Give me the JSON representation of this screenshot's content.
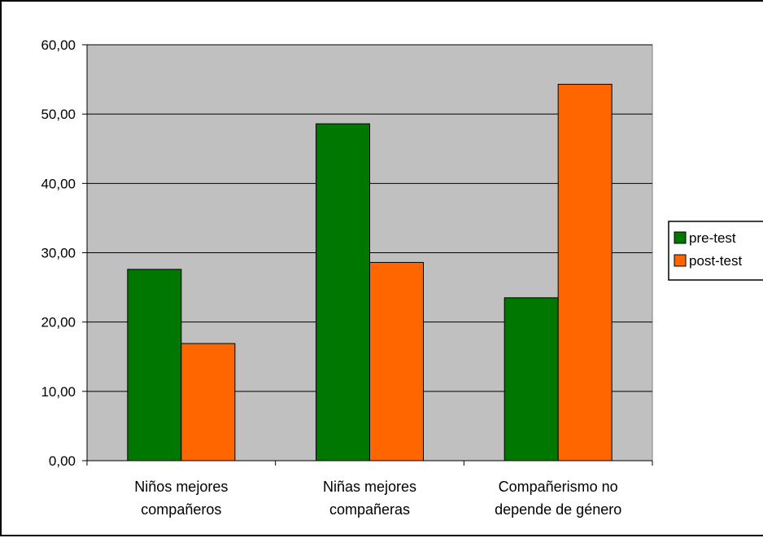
{
  "chart_data": {
    "type": "bar",
    "title": "",
    "xlabel": "",
    "ylabel": "",
    "categories": [
      [
        "Niños mejores",
        "compañeros"
      ],
      [
        "Niñas mejores",
        "compañeras"
      ],
      [
        "Compañerismo no",
        "depende de género"
      ]
    ],
    "series": [
      {
        "name": "pre-test",
        "color": "#007800",
        "values": [
          27.6,
          48.6,
          23.5
        ]
      },
      {
        "name": "post-test",
        "color": "#FF6600",
        "values": [
          16.9,
          28.6,
          54.3
        ]
      }
    ],
    "ylim": [
      0,
      60
    ],
    "yticks": [
      0,
      10,
      20,
      30,
      40,
      50,
      60
    ],
    "ytick_labels": [
      "0,00",
      "10,00",
      "20,00",
      "30,00",
      "40,00",
      "50,00",
      "60,00"
    ],
    "grid": true,
    "legend": {
      "placement": "right"
    },
    "colors": {
      "plot_background": "#C0C0C0",
      "gridline": "#000000"
    }
  }
}
